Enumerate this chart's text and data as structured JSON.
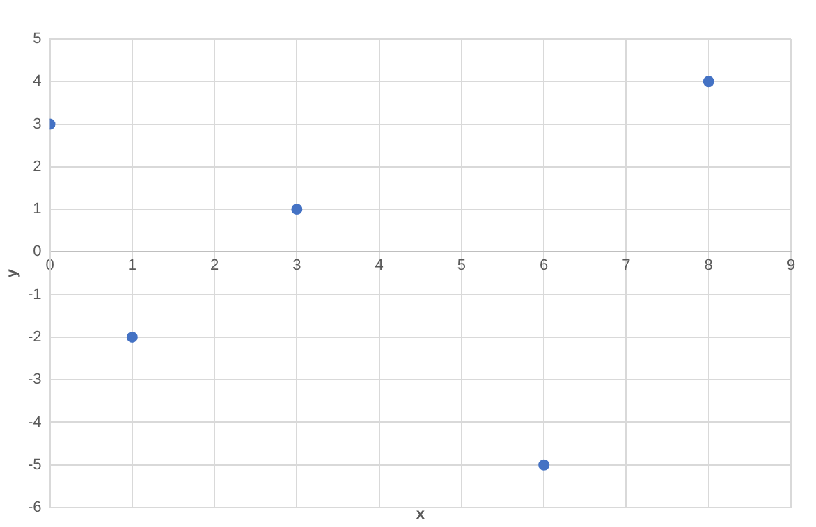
{
  "chart_data": {
    "type": "scatter",
    "xlabel": "x",
    "ylabel": "y",
    "x": [
      0,
      1,
      3,
      6,
      8
    ],
    "series": [
      {
        "color": "#4472c4",
        "values": [
          3,
          -2,
          1,
          -5,
          4
        ]
      }
    ],
    "xlim": [
      0,
      9
    ],
    "xticks": [
      0,
      1,
      2,
      3,
      4,
      5,
      6,
      7,
      8,
      9
    ],
    "ylim": [
      -6,
      5
    ],
    "yticks": [
      -6,
      -5,
      -4,
      -3,
      -2,
      -1,
      0,
      1,
      2,
      3,
      4,
      5
    ],
    "grid": true,
    "legend": false,
    "marker": "circle"
  }
}
